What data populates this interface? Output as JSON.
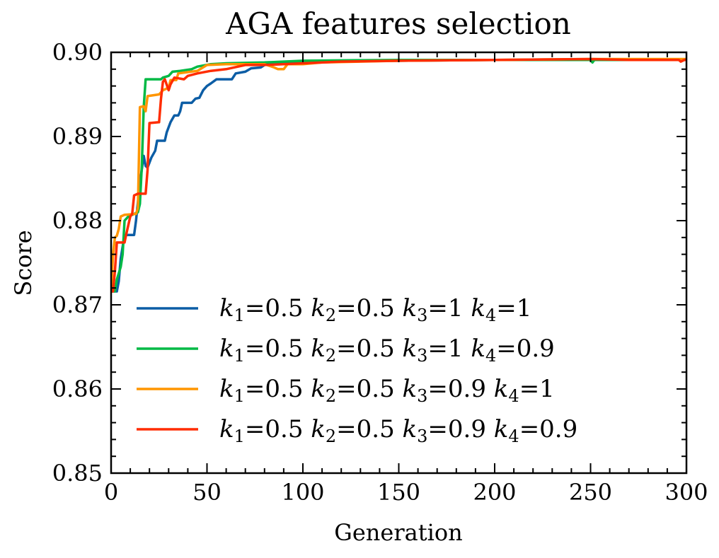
{
  "chart_data": {
    "type": "line",
    "title": "AGA features selection",
    "xlabel": "Generation",
    "ylabel": "Score",
    "xlim": [
      0,
      300
    ],
    "ylim": [
      0.85,
      0.9
    ],
    "xticks": [
      0,
      50,
      100,
      150,
      200,
      250,
      300
    ],
    "yticks": [
      0.85,
      0.86,
      0.87,
      0.88,
      0.89,
      0.9
    ],
    "xtick_labels": [
      "0",
      "50",
      "100",
      "150",
      "200",
      "250",
      "300"
    ],
    "ytick_labels": [
      "0.85",
      "0.86",
      "0.87",
      "0.88",
      "0.89",
      "0.90"
    ],
    "grid": false,
    "legend_position": "lower-center",
    "series": [
      {
        "name": "k1=0.5 k2=0.5 k3=1 k4=1",
        "legend": {
          "k1": "0.5",
          "k2": "0.5",
          "k3": "1",
          "k4": "1"
        },
        "color": "#0C5DA5",
        "points": [
          [
            0,
            0.8716
          ],
          [
            3,
            0.8716
          ],
          [
            4,
            0.8728
          ],
          [
            5,
            0.8755
          ],
          [
            7,
            0.8783
          ],
          [
            12,
            0.8783
          ],
          [
            13,
            0.88
          ],
          [
            15,
            0.8845
          ],
          [
            17,
            0.8877
          ],
          [
            18,
            0.8865
          ],
          [
            19,
            0.8863
          ],
          [
            21,
            0.8875
          ],
          [
            23,
            0.8883
          ],
          [
            24,
            0.8895
          ],
          [
            28,
            0.8895
          ],
          [
            29,
            0.8905
          ],
          [
            31,
            0.8917
          ],
          [
            33,
            0.8925
          ],
          [
            35,
            0.8925
          ],
          [
            36,
            0.893
          ],
          [
            37,
            0.894
          ],
          [
            42,
            0.894
          ],
          [
            44,
            0.8945
          ],
          [
            46,
            0.8946
          ],
          [
            48,
            0.8955
          ],
          [
            50,
            0.896
          ],
          [
            52,
            0.8963
          ],
          [
            55,
            0.8968
          ],
          [
            63,
            0.8968
          ],
          [
            65,
            0.8975
          ],
          [
            70,
            0.8977
          ],
          [
            73,
            0.8981
          ],
          [
            78,
            0.8982
          ],
          [
            80,
            0.8985
          ],
          [
            85,
            0.8987
          ],
          [
            95,
            0.8987
          ],
          [
            100,
            0.8989
          ],
          [
            150,
            0.899
          ],
          [
            200,
            0.8991
          ],
          [
            250,
            0.8991
          ],
          [
            300,
            0.8991
          ]
        ]
      },
      {
        "name": "k1=0.5 k2=0.5 k3=1 k4=0.9",
        "legend": {
          "k1": "0.5",
          "k2": "0.5",
          "k3": "1",
          "k4": "0.9"
        },
        "color": "#00B945",
        "points": [
          [
            0,
            0.8716
          ],
          [
            2,
            0.8716
          ],
          [
            3,
            0.873
          ],
          [
            5,
            0.8745
          ],
          [
            6,
            0.876
          ],
          [
            7,
            0.88
          ],
          [
            9,
            0.8805
          ],
          [
            14,
            0.881
          ],
          [
            15,
            0.882
          ],
          [
            16,
            0.8865
          ],
          [
            17,
            0.8935
          ],
          [
            18,
            0.8968
          ],
          [
            26,
            0.8968
          ],
          [
            27,
            0.897
          ],
          [
            30,
            0.8972
          ],
          [
            32,
            0.8977
          ],
          [
            36,
            0.8978
          ],
          [
            42,
            0.898
          ],
          [
            45,
            0.8983
          ],
          [
            52,
            0.8986
          ],
          [
            60,
            0.8987
          ],
          [
            80,
            0.8988
          ],
          [
            100,
            0.899
          ],
          [
            150,
            0.8991
          ],
          [
            200,
            0.8991
          ],
          [
            250,
            0.8991
          ],
          [
            251,
            0.8988
          ],
          [
            252,
            0.8991
          ],
          [
            300,
            0.8991
          ]
        ]
      },
      {
        "name": "k1=0.5 k2=0.5 k3=0.9 k4=1",
        "legend": {
          "k1": "0.5",
          "k2": "0.5",
          "k3": "0.9",
          "k4": "1"
        },
        "color": "#FF9500",
        "points": [
          [
            0,
            0.8716
          ],
          [
            1,
            0.876
          ],
          [
            2,
            0.878
          ],
          [
            3,
            0.8782
          ],
          [
            4,
            0.879
          ],
          [
            5,
            0.8805
          ],
          [
            7,
            0.8807
          ],
          [
            13,
            0.8808
          ],
          [
            14,
            0.8815
          ],
          [
            15,
            0.8935
          ],
          [
            17,
            0.8936
          ],
          [
            18,
            0.893
          ],
          [
            19,
            0.8948
          ],
          [
            25,
            0.895
          ],
          [
            27,
            0.8955
          ],
          [
            30,
            0.8958
          ],
          [
            31,
            0.8967
          ],
          [
            34,
            0.8967
          ],
          [
            35,
            0.8975
          ],
          [
            45,
            0.8978
          ],
          [
            50,
            0.8985
          ],
          [
            60,
            0.8986
          ],
          [
            80,
            0.8986
          ],
          [
            85,
            0.8982
          ],
          [
            87,
            0.898
          ],
          [
            90,
            0.898
          ],
          [
            92,
            0.8986
          ],
          [
            100,
            0.8986
          ],
          [
            110,
            0.8988
          ],
          [
            150,
            0.899
          ],
          [
            200,
            0.8991
          ],
          [
            250,
            0.8992
          ],
          [
            300,
            0.8992
          ]
        ]
      },
      {
        "name": "k1=0.5 k2=0.5 k3=0.9 k4=0.9",
        "legend": {
          "k1": "0.5",
          "k2": "0.5",
          "k3": "0.9",
          "k4": "0.9"
        },
        "color": "#FF2C00",
        "points": [
          [
            0,
            0.8716
          ],
          [
            1,
            0.8716
          ],
          [
            2,
            0.874
          ],
          [
            3,
            0.8774
          ],
          [
            7,
            0.8774
          ],
          [
            8,
            0.8785
          ],
          [
            9,
            0.8795
          ],
          [
            10,
            0.8805
          ],
          [
            11,
            0.8808
          ],
          [
            12,
            0.883
          ],
          [
            14,
            0.8832
          ],
          [
            18,
            0.8832
          ],
          [
            19,
            0.886
          ],
          [
            20,
            0.8916
          ],
          [
            25,
            0.8917
          ],
          [
            26,
            0.8945
          ],
          [
            27,
            0.8965
          ],
          [
            28,
            0.8968
          ],
          [
            30,
            0.8955
          ],
          [
            31,
            0.8962
          ],
          [
            33,
            0.897
          ],
          [
            38,
            0.8968
          ],
          [
            40,
            0.8972
          ],
          [
            45,
            0.8975
          ],
          [
            52,
            0.8978
          ],
          [
            60,
            0.898
          ],
          [
            70,
            0.8985
          ],
          [
            80,
            0.8985
          ],
          [
            90,
            0.8986
          ],
          [
            100,
            0.8987
          ],
          [
            120,
            0.8989
          ],
          [
            150,
            0.899
          ],
          [
            200,
            0.8991
          ],
          [
            250,
            0.8992
          ],
          [
            270,
            0.8991
          ],
          [
            296,
            0.8991
          ],
          [
            297,
            0.8989
          ],
          [
            299,
            0.8991
          ],
          [
            300,
            0.8991
          ]
        ]
      }
    ]
  }
}
